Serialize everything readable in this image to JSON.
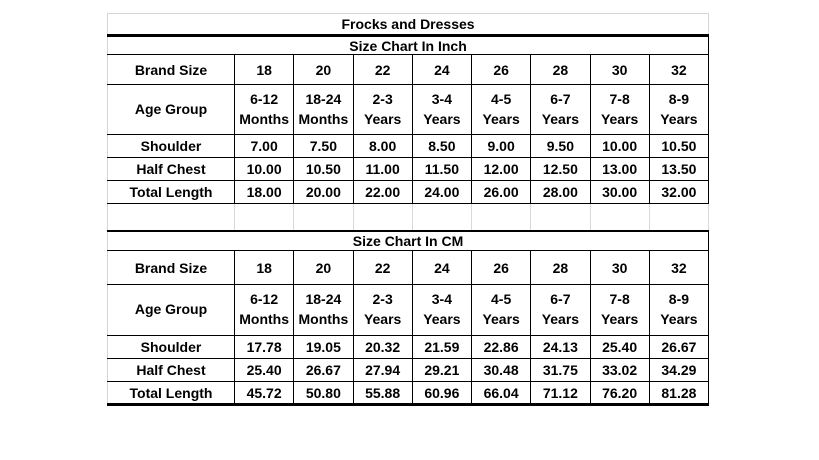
{
  "title": "Frocks and Dresses",
  "colors": {
    "border_black": "#000000",
    "gridline_gray": "#d6d6d6",
    "text": "#000000",
    "background": "#ffffff"
  },
  "sections": [
    {
      "header": "Size Chart In Inch",
      "rows": [
        {
          "label": "Brand Size",
          "values": [
            "18",
            "20",
            "22",
            "24",
            "26",
            "28",
            "30",
            "32"
          ]
        },
        {
          "label": "Age Group",
          "values": [
            "6-12\nMonths",
            "18-24\nMonths",
            "2-3\nYears",
            "3-4\nYears",
            "4-5\nYears",
            "6-7\nYears",
            "7-8\nYears",
            "8-9\nYears"
          ]
        },
        {
          "label": "Shoulder",
          "values": [
            "7.00",
            "7.50",
            "8.00",
            "8.50",
            "9.00",
            "9.50",
            "10.00",
            "10.50"
          ]
        },
        {
          "label": "Half Chest",
          "values": [
            "10.00",
            "10.50",
            "11.00",
            "11.50",
            "12.00",
            "12.50",
            "13.00",
            "13.50"
          ]
        },
        {
          "label": "Total Length",
          "values": [
            "18.00",
            "20.00",
            "22.00",
            "24.00",
            "26.00",
            "28.00",
            "30.00",
            "32.00"
          ]
        }
      ]
    },
    {
      "header": "Size Chart In CM",
      "rows": [
        {
          "label": "Brand Size",
          "values": [
            "18",
            "20",
            "22",
            "24",
            "26",
            "28",
            "30",
            "32"
          ]
        },
        {
          "label": "Age Group",
          "values": [
            "6-12\nMonths",
            "18-24\nMonths",
            "2-3\nYears",
            "3-4\nYears",
            "4-5\nYears",
            "6-7\nYears",
            "7-8\nYears",
            "8-9\nYears"
          ]
        },
        {
          "label": "Shoulder",
          "values": [
            "17.78",
            "19.05",
            "20.32",
            "21.59",
            "22.86",
            "24.13",
            "25.40",
            "26.67"
          ]
        },
        {
          "label": "Half Chest",
          "values": [
            "25.40",
            "26.67",
            "27.94",
            "29.21",
            "30.48",
            "31.75",
            "33.02",
            "34.29"
          ]
        },
        {
          "label": "Total Length",
          "values": [
            "45.72",
            "50.80",
            "55.88",
            "60.96",
            "66.04",
            "71.12",
            "76.20",
            "81.28"
          ]
        }
      ]
    }
  ]
}
